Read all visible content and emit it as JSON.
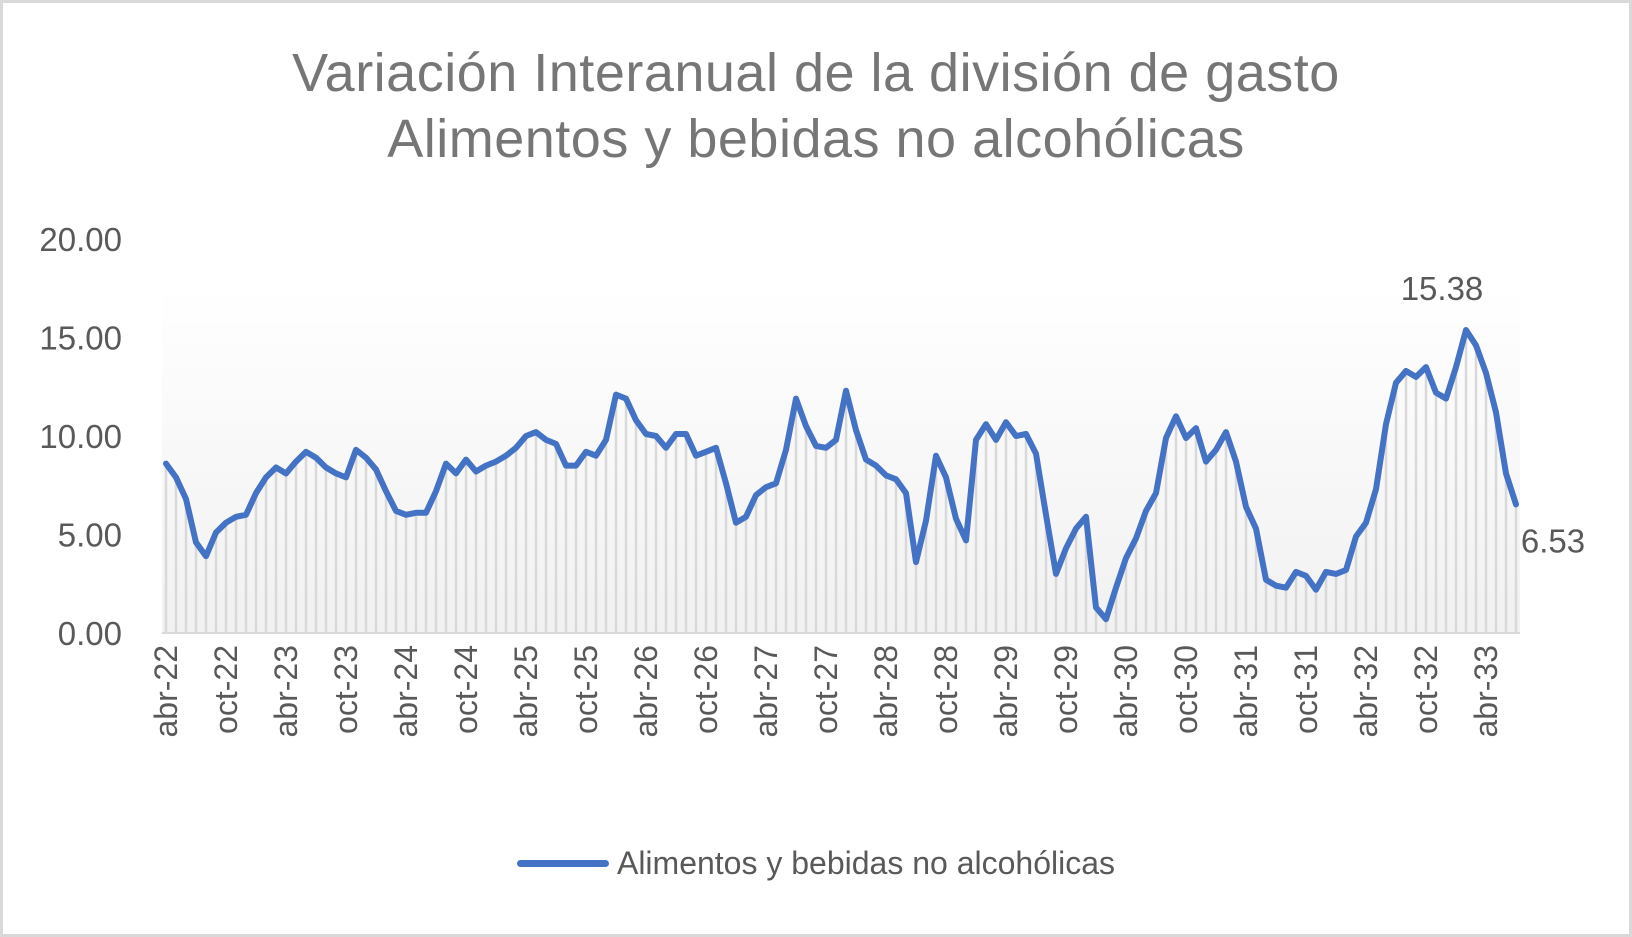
{
  "chart_data": {
    "type": "line",
    "title": "Variación Interanual de la división de gasto Alimentos y bebidas no alcohólicas",
    "title_lines": [
      "Variación Interanual de la división de gasto",
      "Alimentos y bebidas no alcohólicas"
    ],
    "xlabel": "",
    "ylabel": "",
    "ylim": [
      0,
      20
    ],
    "yticks": [
      "0.00",
      "5.00",
      "10.00",
      "15.00",
      "20.00"
    ],
    "ytick_values": [
      0,
      5,
      10,
      15,
      20
    ],
    "xtick_labels": [
      "abr-22",
      "oct-22",
      "abr-23",
      "oct-23",
      "abr-24",
      "oct-24",
      "abr-25",
      "oct-25",
      "abr-26",
      "oct-26",
      "abr-27",
      "oct-27",
      "abr-28",
      "oct-28",
      "abr-29",
      "oct-29",
      "abr-30",
      "oct-30",
      "abr-31",
      "oct-31",
      "abr-32",
      "oct-32",
      "abr-33"
    ],
    "x_start": "abr-22",
    "x_frequency": "monthly",
    "grid": false,
    "drop_lines": true,
    "legend_position": "bottom",
    "series": [
      {
        "name": "Alimentos y bebidas no alcohólicas",
        "color": "#4472c4",
        "values": [
          8.6,
          7.9,
          6.8,
          4.6,
          3.9,
          5.1,
          5.6,
          5.9,
          6.0,
          7.1,
          7.9,
          8.4,
          8.1,
          8.7,
          9.2,
          8.9,
          8.4,
          8.1,
          7.9,
          9.3,
          8.9,
          8.3,
          7.2,
          6.2,
          6.0,
          6.1,
          6.1,
          7.2,
          8.6,
          8.1,
          8.8,
          8.2,
          8.5,
          8.7,
          9.0,
          9.4,
          10.0,
          10.2,
          9.8,
          9.6,
          8.5,
          8.5,
          9.2,
          9.0,
          9.8,
          12.1,
          11.9,
          10.8,
          10.1,
          10.0,
          9.4,
          10.1,
          10.1,
          9.0,
          9.2,
          9.4,
          7.6,
          5.6,
          5.9,
          7.0,
          7.4,
          7.6,
          9.3,
          11.9,
          10.5,
          9.5,
          9.4,
          9.8,
          12.3,
          10.3,
          8.8,
          8.5,
          8.0,
          7.8,
          7.1,
          3.6,
          5.7,
          9.0,
          7.9,
          5.8,
          4.7,
          9.8,
          10.6,
          9.8,
          10.7,
          10.0,
          10.1,
          9.1,
          6.0,
          3.0,
          4.3,
          5.3,
          5.9,
          1.3,
          0.7,
          2.3,
          3.8,
          4.8,
          6.2,
          7.1,
          9.9,
          11.0,
          9.9,
          10.4,
          8.7,
          9.3,
          10.2,
          8.7,
          6.4,
          5.3,
          2.7,
          2.4,
          2.3,
          3.1,
          2.9,
          2.2,
          3.1,
          3.0,
          3.2,
          4.9,
          5.6,
          7.3,
          10.6,
          12.7,
          13.3,
          13.0,
          13.5,
          12.2,
          11.9,
          13.5,
          15.38,
          14.6,
          13.2,
          11.2,
          8.1,
          6.53
        ]
      }
    ],
    "annotations": [
      {
        "label": "15.38",
        "index": 130,
        "value": 15.38
      },
      {
        "label": "6.53",
        "index": 135,
        "value": 6.53
      }
    ]
  },
  "legend": {
    "label": "Alimentos y bebidas no alcohólicas",
    "color": "#4472c4"
  },
  "colors": {
    "line": "#4472c4",
    "text": "#595959",
    "title": "#767676",
    "droplines": "#d9d9d9",
    "border": "#d9d9d9"
  }
}
